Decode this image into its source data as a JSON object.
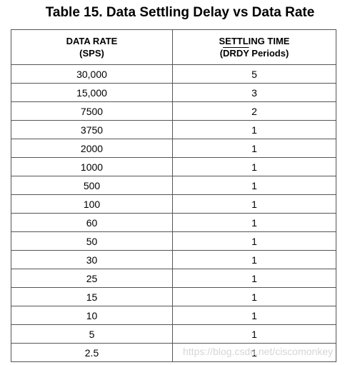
{
  "title": "Table 15. Data Settling Delay vs Data Rate",
  "table": {
    "headers": {
      "rate_line1": "DATA RATE",
      "rate_line2": "(SPS)",
      "time_line1": "SETTLING TIME",
      "time_line2_overlined": "DRDY",
      "time_line2_open": "(",
      "time_line2_rest": " Periods)"
    },
    "rows": [
      {
        "rate": "30,000",
        "time": "5"
      },
      {
        "rate": "15,000",
        "time": "3"
      },
      {
        "rate": "7500",
        "time": "2"
      },
      {
        "rate": "3750",
        "time": "1"
      },
      {
        "rate": "2000",
        "time": "1"
      },
      {
        "rate": "1000",
        "time": "1"
      },
      {
        "rate": "500",
        "time": "1"
      },
      {
        "rate": "100",
        "time": "1"
      },
      {
        "rate": "60",
        "time": "1"
      },
      {
        "rate": "50",
        "time": "1"
      },
      {
        "rate": "30",
        "time": "1"
      },
      {
        "rate": "25",
        "time": "1"
      },
      {
        "rate": "15",
        "time": "1"
      },
      {
        "rate": "10",
        "time": "1"
      },
      {
        "rate": "5",
        "time": "1"
      },
      {
        "rate": "2.5",
        "time": "1"
      }
    ]
  },
  "watermark": "https://blog.csdn.net/ciscomonkey"
}
